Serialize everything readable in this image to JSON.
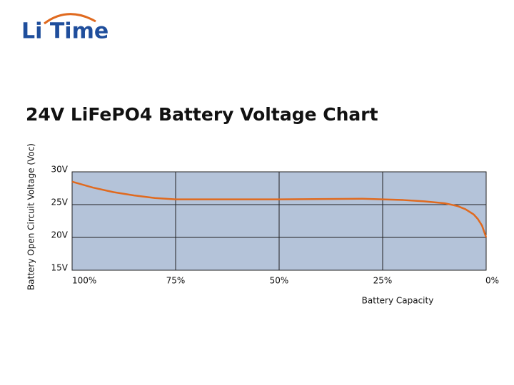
{
  "logo": "Li Time",
  "chart_data": {
    "type": "line",
    "title": "24V LiFePO4 Battery Voltage Chart",
    "x_label": "Battery Capacity",
    "y_label": "Battery Open Circuit Voltage (Voc)",
    "xlim": [
      100,
      0
    ],
    "ylim": [
      15,
      30
    ],
    "xticks": [
      {
        "value": 100,
        "label": "100%"
      },
      {
        "value": 75,
        "label": "75%"
      },
      {
        "value": 50,
        "label": "50%"
      },
      {
        "value": 25,
        "label": "25%"
      },
      {
        "value": 0,
        "label": "0%"
      }
    ],
    "yticks": [
      {
        "value": 15,
        "label": "15V"
      },
      {
        "value": 20,
        "label": "20V"
      },
      {
        "value": 25,
        "label": "25V"
      },
      {
        "value": 30,
        "label": "30V"
      }
    ],
    "grid": true,
    "plot_color": "#b4c3d9",
    "x": [
      100,
      95,
      90,
      85,
      80,
      75,
      50,
      30,
      25,
      20,
      15,
      10,
      7,
      5,
      3,
      2,
      1,
      0
    ],
    "series": [
      {
        "name": "24V LiFePO4",
        "color": "#e06a1f",
        "values": [
          28.5,
          27.6,
          26.9,
          26.4,
          26.0,
          25.8,
          25.8,
          25.9,
          25.8,
          25.7,
          25.5,
          25.2,
          24.8,
          24.3,
          23.5,
          22.8,
          21.8,
          20.0
        ]
      }
    ]
  }
}
